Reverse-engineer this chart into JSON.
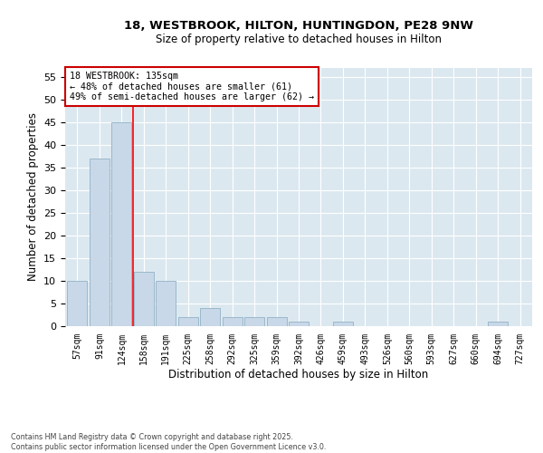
{
  "title_line1": "18, WESTBROOK, HILTON, HUNTINGDON, PE28 9NW",
  "title_line2": "Size of property relative to detached houses in Hilton",
  "xlabel": "Distribution of detached houses by size in Hilton",
  "ylabel": "Number of detached properties",
  "categories": [
    "57sqm",
    "91sqm",
    "124sqm",
    "158sqm",
    "191sqm",
    "225sqm",
    "258sqm",
    "292sqm",
    "325sqm",
    "359sqm",
    "392sqm",
    "426sqm",
    "459sqm",
    "493sqm",
    "526sqm",
    "560sqm",
    "593sqm",
    "627sqm",
    "660sqm",
    "694sqm",
    "727sqm"
  ],
  "values": [
    10,
    37,
    45,
    12,
    10,
    2,
    4,
    2,
    2,
    2,
    1,
    0,
    1,
    0,
    0,
    0,
    0,
    0,
    0,
    1,
    0
  ],
  "bar_color": "#c8d8e8",
  "bar_edge_color": "#9ab8cc",
  "redline_x": 2.5,
  "ylim": [
    0,
    57
  ],
  "yticks": [
    0,
    5,
    10,
    15,
    20,
    25,
    30,
    35,
    40,
    45,
    50,
    55
  ],
  "annotation_text": "18 WESTBROOK: 135sqm\n← 48% of detached houses are smaller (61)\n49% of semi-detached houses are larger (62) →",
  "annotation_box_color": "#ffffff",
  "annotation_box_edge": "#cc0000",
  "background_color": "#dce8f0",
  "footer_line1": "Contains HM Land Registry data © Crown copyright and database right 2025.",
  "footer_line2": "Contains public sector information licensed under the Open Government Licence v3.0."
}
